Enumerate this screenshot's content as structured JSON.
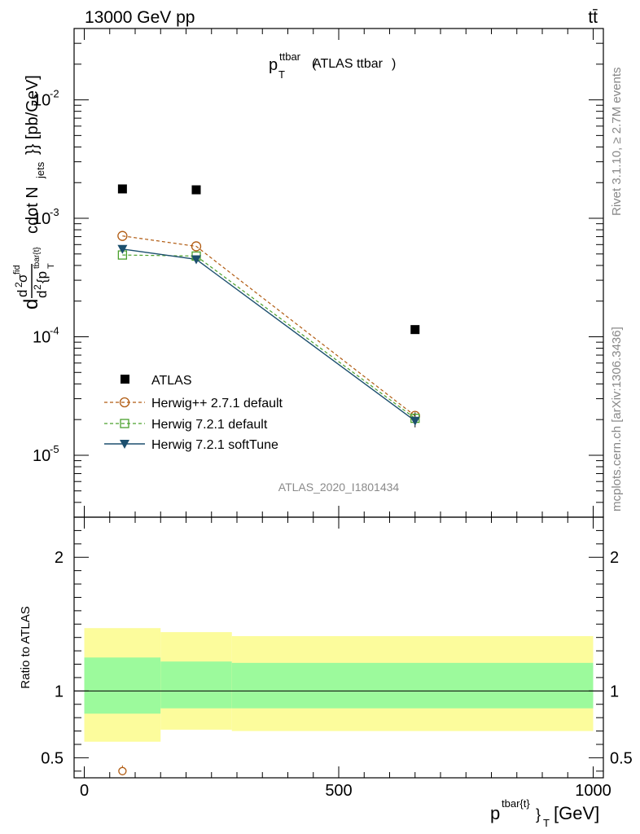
{
  "header": {
    "left": "13000 GeV pp",
    "right": "tt̄"
  },
  "side_text": {
    "rivet": "Rivet 3.1.10, ≥ 2.7M events",
    "mcplots": "mcplots.cern.ch [arXiv:1306.3436]"
  },
  "watermark": "ATLAS_2020_I1801434",
  "colors": {
    "atlas": "#000000",
    "herwigpp": "#b05a10",
    "herwig721": "#4aa02c",
    "softtune": "#1c4f6e",
    "band_inner": "#9cfa9c",
    "band_outer": "#fcfc9c"
  },
  "chart_data": [
    {
      "type": "scatter",
      "title": "ATLAS ttbar",
      "ylabel_text": "cdot N",
      "ylabel_sub": "jets",
      "ylabel_unit": "}} [pb/GeV]",
      "yscale": "log",
      "ylim": [
        3e-06,
        0.04
      ],
      "xlim": [
        -20,
        1020
      ],
      "y_tick_labels": [
        "10",
        "10",
        "10",
        "10"
      ],
      "y_tick_exponents": [
        "-2",
        "-3",
        "-4",
        "-5"
      ],
      "legend_position": "lower-left",
      "series": [
        {
          "name": "ATLAS",
          "marker": "square-filled",
          "x": [
            75,
            220,
            650
          ],
          "y": [
            0.00177,
            0.00174,
            0.000115
          ]
        },
        {
          "name": "Herwig++ 2.7.1 default",
          "marker": "circle-open",
          "line": "dashed",
          "x": [
            75,
            220,
            650
          ],
          "y": [
            0.00071,
            0.00058,
            2.15e-05
          ]
        },
        {
          "name": "Herwig 7.2.1 default",
          "marker": "square-open",
          "line": "dashed",
          "x": [
            75,
            220,
            650
          ],
          "y": [
            0.00049,
            0.00048,
            2.05e-05
          ]
        },
        {
          "name": "Herwig 7.2.1 softTune",
          "marker": "triangle-down-filled",
          "line": "solid",
          "x": [
            75,
            220,
            650
          ],
          "y": [
            0.00055,
            0.00045,
            1.95e-05
          ]
        }
      ]
    },
    {
      "type": "scatter",
      "ylabel": "Ratio to ATLAS",
      "xlabel_unit": "[GeV]",
      "ylim": [
        0.35,
        2.3
      ],
      "xlim": [
        -20,
        1020
      ],
      "x_tick_labels": [
        "0",
        "500",
        "1000"
      ],
      "y_tick_labels": [
        "0.5",
        "1",
        "2"
      ],
      "bins": [
        {
          "xlo": 0,
          "xhi": 150,
          "inner": [
            0.83,
            1.25
          ],
          "outer": [
            0.62,
            1.47
          ]
        },
        {
          "xlo": 150,
          "xhi": 290,
          "inner": [
            0.87,
            1.22
          ],
          "outer": [
            0.71,
            1.44
          ]
        },
        {
          "xlo": 290,
          "xhi": 1000,
          "inner": [
            0.87,
            1.21
          ],
          "outer": [
            0.7,
            1.41
          ]
        }
      ],
      "series": [
        {
          "name": "Herwig++ 2.7.1 default",
          "x": [
            75
          ],
          "y": [
            0.4
          ]
        }
      ]
    }
  ]
}
